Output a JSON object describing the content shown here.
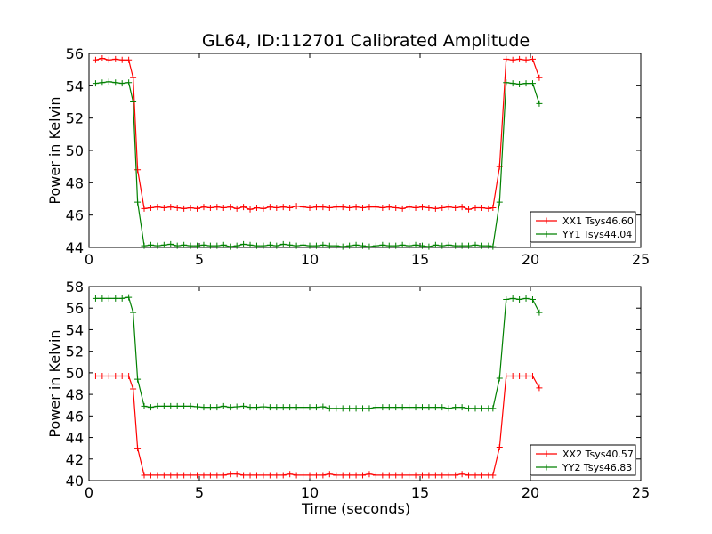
{
  "title": "GL64, ID:112701 Calibrated Amplitude",
  "colors": {
    "xx": "#ff0000",
    "yy": "#008000"
  },
  "chart_data": [
    {
      "type": "line",
      "title": "GL64, ID:112701 Calibrated Amplitude",
      "xlabel": "",
      "ylabel": "Power in Kelvin",
      "xlim": [
        0,
        25
      ],
      "ylim": [
        44,
        56
      ],
      "xticks": [
        "0",
        "5",
        "10",
        "15",
        "20",
        "25"
      ],
      "yticks": [
        "44",
        "46",
        "48",
        "50",
        "52",
        "54",
        "56"
      ],
      "grid": false,
      "legend_position": "lower-right",
      "marker": "+",
      "series": [
        {
          "name": "XX1 Tsys46.60",
          "color": "#ff0000",
          "x": [
            0.3,
            0.6,
            0.9,
            1.2,
            1.5,
            1.8,
            2.0,
            2.2,
            2.5,
            2.8,
            3.1,
            3.4,
            3.7,
            4.0,
            4.3,
            4.6,
            4.9,
            5.2,
            5.5,
            5.8,
            6.1,
            6.4,
            6.7,
            7.0,
            7.3,
            7.6,
            7.9,
            8.2,
            8.5,
            8.8,
            9.1,
            9.4,
            9.7,
            10.0,
            10.3,
            10.6,
            10.9,
            11.2,
            11.5,
            11.8,
            12.1,
            12.4,
            12.7,
            13.0,
            13.3,
            13.6,
            13.9,
            14.2,
            14.5,
            14.8,
            15.1,
            15.4,
            15.7,
            16.0,
            16.3,
            16.6,
            16.9,
            17.2,
            17.5,
            17.8,
            18.1,
            18.3,
            18.6,
            18.9,
            19.2,
            19.5,
            19.8,
            20.1,
            20.4
          ],
          "y": [
            55.6,
            55.7,
            55.6,
            55.65,
            55.6,
            55.6,
            54.5,
            48.8,
            46.4,
            46.45,
            46.5,
            46.45,
            46.5,
            46.45,
            46.4,
            46.45,
            46.4,
            46.5,
            46.45,
            46.5,
            46.45,
            46.5,
            46.4,
            46.5,
            46.35,
            46.45,
            46.4,
            46.5,
            46.45,
            46.5,
            46.45,
            46.55,
            46.5,
            46.45,
            46.5,
            46.5,
            46.45,
            46.5,
            46.5,
            46.45,
            46.5,
            46.45,
            46.5,
            46.5,
            46.45,
            46.5,
            46.45,
            46.4,
            46.5,
            46.45,
            46.5,
            46.45,
            46.4,
            46.45,
            46.5,
            46.45,
            46.5,
            46.35,
            46.45,
            46.45,
            46.4,
            46.45,
            49.0,
            55.65,
            55.6,
            55.65,
            55.6,
            55.65,
            54.5
          ]
        },
        {
          "name": "YY1 Tsys44.04",
          "color": "#008000",
          "x": [
            0.3,
            0.6,
            0.9,
            1.2,
            1.5,
            1.8,
            2.0,
            2.2,
            2.5,
            2.8,
            3.1,
            3.4,
            3.7,
            4.0,
            4.3,
            4.6,
            4.9,
            5.2,
            5.5,
            5.8,
            6.1,
            6.4,
            6.7,
            7.0,
            7.3,
            7.6,
            7.9,
            8.2,
            8.5,
            8.8,
            9.1,
            9.4,
            9.7,
            10.0,
            10.3,
            10.6,
            10.9,
            11.2,
            11.5,
            11.8,
            12.1,
            12.4,
            12.7,
            13.0,
            13.3,
            13.6,
            13.9,
            14.2,
            14.5,
            14.8,
            15.1,
            15.4,
            15.7,
            16.0,
            16.3,
            16.6,
            16.9,
            17.2,
            17.5,
            17.8,
            18.1,
            18.3,
            18.6,
            18.9,
            19.2,
            19.5,
            19.8,
            20.1,
            20.4
          ],
          "y": [
            54.15,
            54.2,
            54.25,
            54.2,
            54.15,
            54.2,
            53.0,
            46.8,
            44.1,
            44.15,
            44.1,
            44.15,
            44.2,
            44.1,
            44.15,
            44.1,
            44.1,
            44.15,
            44.1,
            44.1,
            44.15,
            44.05,
            44.1,
            44.2,
            44.15,
            44.1,
            44.1,
            44.15,
            44.1,
            44.2,
            44.15,
            44.1,
            44.15,
            44.1,
            44.1,
            44.15,
            44.1,
            44.1,
            44.05,
            44.1,
            44.15,
            44.1,
            44.05,
            44.1,
            44.15,
            44.1,
            44.1,
            44.15,
            44.1,
            44.15,
            44.1,
            44.05,
            44.15,
            44.1,
            44.15,
            44.1,
            44.1,
            44.1,
            44.15,
            44.1,
            44.1,
            44.05,
            46.8,
            54.2,
            54.15,
            54.1,
            54.15,
            54.15,
            52.9
          ]
        }
      ]
    },
    {
      "type": "line",
      "title": "",
      "xlabel": "Time (seconds)",
      "ylabel": "Power in Kelvin",
      "xlim": [
        0,
        25
      ],
      "ylim": [
        40,
        58
      ],
      "xticks": [
        "0",
        "5",
        "10",
        "15",
        "20",
        "25"
      ],
      "yticks": [
        "40",
        "42",
        "44",
        "46",
        "48",
        "50",
        "52",
        "54",
        "56",
        "58"
      ],
      "grid": false,
      "legend_position": "lower-right",
      "marker": "+",
      "series": [
        {
          "name": "XX2 Tsys40.57",
          "color": "#ff0000",
          "x": [
            0.3,
            0.6,
            0.9,
            1.2,
            1.5,
            1.8,
            2.0,
            2.2,
            2.5,
            2.8,
            3.1,
            3.4,
            3.7,
            4.0,
            4.3,
            4.6,
            4.9,
            5.2,
            5.5,
            5.8,
            6.1,
            6.4,
            6.7,
            7.0,
            7.3,
            7.6,
            7.9,
            8.2,
            8.5,
            8.8,
            9.1,
            9.4,
            9.7,
            10.0,
            10.3,
            10.6,
            10.9,
            11.2,
            11.5,
            11.8,
            12.1,
            12.4,
            12.7,
            13.0,
            13.3,
            13.6,
            13.9,
            14.2,
            14.5,
            14.8,
            15.1,
            15.4,
            15.7,
            16.0,
            16.3,
            16.6,
            16.9,
            17.2,
            17.5,
            17.8,
            18.1,
            18.3,
            18.6,
            18.9,
            19.2,
            19.5,
            19.8,
            20.1,
            20.4
          ],
          "y": [
            49.7,
            49.7,
            49.7,
            49.7,
            49.7,
            49.7,
            48.5,
            43.0,
            40.5,
            40.5,
            40.5,
            40.5,
            40.5,
            40.5,
            40.5,
            40.5,
            40.5,
            40.5,
            40.5,
            40.5,
            40.5,
            40.6,
            40.6,
            40.5,
            40.5,
            40.5,
            40.5,
            40.5,
            40.5,
            40.5,
            40.6,
            40.5,
            40.5,
            40.5,
            40.5,
            40.5,
            40.6,
            40.5,
            40.5,
            40.5,
            40.5,
            40.5,
            40.6,
            40.5,
            40.5,
            40.5,
            40.5,
            40.5,
            40.5,
            40.5,
            40.5,
            40.5,
            40.5,
            40.5,
            40.5,
            40.5,
            40.6,
            40.5,
            40.5,
            40.5,
            40.5,
            40.5,
            43.1,
            49.7,
            49.7,
            49.7,
            49.7,
            49.7,
            48.6
          ]
        },
        {
          "name": "YY2 Tsys46.83",
          "color": "#008000",
          "x": [
            0.3,
            0.6,
            0.9,
            1.2,
            1.5,
            1.8,
            2.0,
            2.2,
            2.5,
            2.8,
            3.1,
            3.4,
            3.7,
            4.0,
            4.3,
            4.6,
            4.9,
            5.2,
            5.5,
            5.8,
            6.1,
            6.4,
            6.7,
            7.0,
            7.3,
            7.6,
            7.9,
            8.2,
            8.5,
            8.8,
            9.1,
            9.4,
            9.7,
            10.0,
            10.3,
            10.6,
            10.9,
            11.2,
            11.5,
            11.8,
            12.1,
            12.4,
            12.7,
            13.0,
            13.3,
            13.6,
            13.9,
            14.2,
            14.5,
            14.8,
            15.1,
            15.4,
            15.7,
            16.0,
            16.3,
            16.6,
            16.9,
            17.2,
            17.5,
            17.8,
            18.1,
            18.3,
            18.6,
            18.9,
            19.2,
            19.5,
            19.8,
            20.1,
            20.4
          ],
          "y": [
            56.9,
            56.9,
            56.9,
            56.9,
            56.9,
            57.0,
            55.6,
            49.4,
            46.9,
            46.8,
            46.9,
            46.9,
            46.9,
            46.9,
            46.9,
            46.9,
            46.85,
            46.8,
            46.8,
            46.8,
            46.9,
            46.8,
            46.85,
            46.9,
            46.8,
            46.8,
            46.85,
            46.8,
            46.8,
            46.8,
            46.8,
            46.8,
            46.8,
            46.8,
            46.8,
            46.85,
            46.7,
            46.7,
            46.7,
            46.7,
            46.7,
            46.7,
            46.7,
            46.8,
            46.8,
            46.8,
            46.8,
            46.8,
            46.8,
            46.8,
            46.8,
            46.8,
            46.8,
            46.8,
            46.7,
            46.8,
            46.8,
            46.7,
            46.7,
            46.7,
            46.7,
            46.7,
            49.5,
            56.8,
            56.9,
            56.8,
            56.9,
            56.8,
            55.6
          ]
        }
      ]
    }
  ]
}
